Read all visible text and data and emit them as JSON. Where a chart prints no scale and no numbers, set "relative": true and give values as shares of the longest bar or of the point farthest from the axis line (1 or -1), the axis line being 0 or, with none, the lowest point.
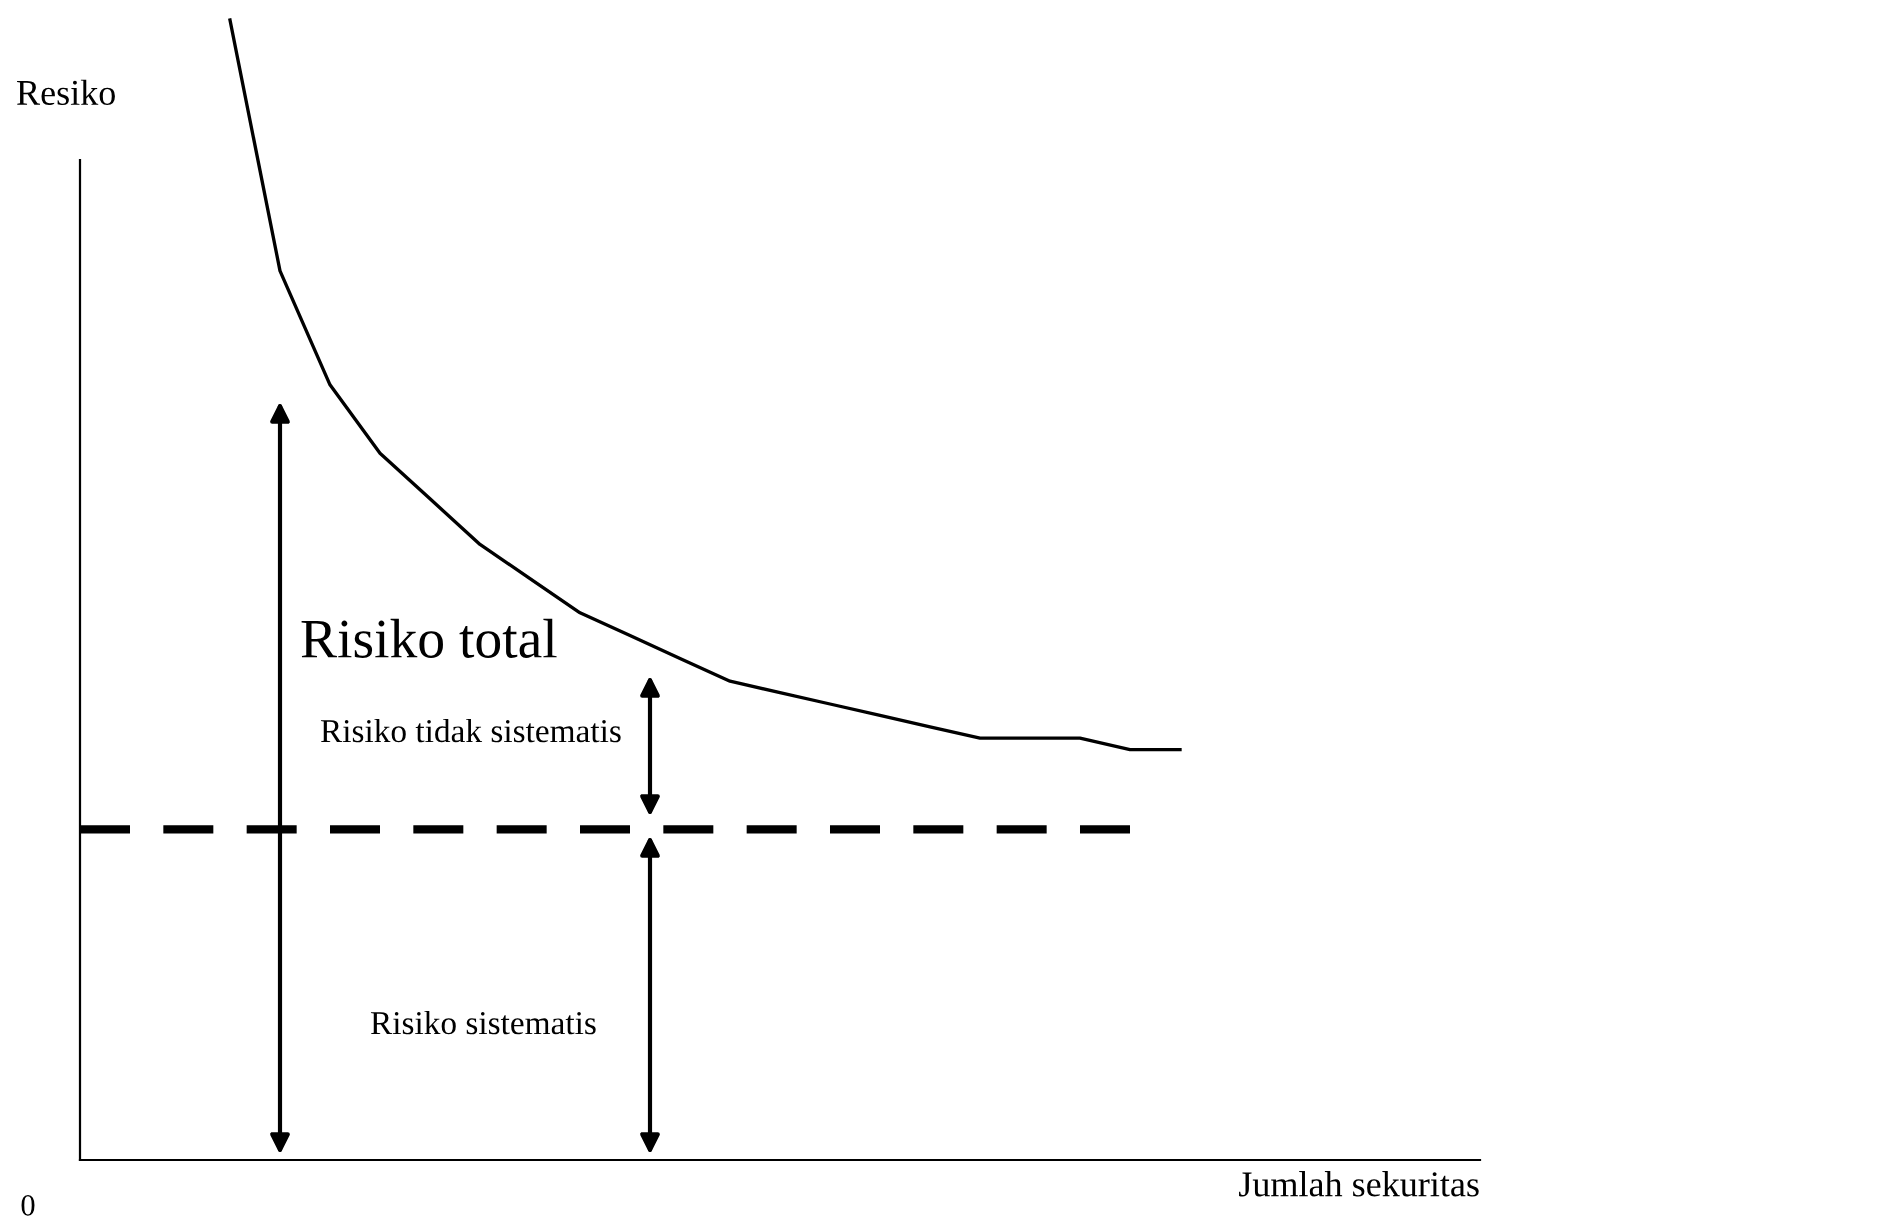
{
  "chart_data": {
    "type": "line",
    "relative": true,
    "xlabel": "Jumlah sekuritas",
    "ylabel": "Resiko",
    "categories": [
      null,
      null,
      null,
      null,
      null,
      null,
      null,
      null,
      null,
      null,
      null,
      null,
      null,
      null,
      null,
      null,
      null,
      null,
      null,
      null,
      null,
      null,
      null
    ],
    "series": [
      {
        "color": "#000000",
        "line_style": "solid",
        "values": [
          null,
          null,
          null,
          1.0,
          0.78,
          0.68,
          0.62,
          0.58,
          0.54,
          0.51,
          0.48,
          0.46,
          0.44,
          0.42,
          0.41,
          0.4,
          0.39,
          0.38,
          0.37,
          0.37,
          0.37,
          0.36,
          0.36
        ]
      },
      {
        "color": "#000000",
        "line_style": "dashed",
        "values": [
          0.29,
          0.29,
          0.29,
          0.29,
          0.29,
          0.29,
          0.29,
          0.29,
          0.29,
          0.29,
          0.29,
          0.29,
          0.29,
          0.29,
          0.29,
          0.29,
          0.29,
          0.29,
          0.29,
          0.29,
          0.29,
          0.29,
          null
        ]
      }
    ],
    "annotations": [
      "Risiko total",
      "Risiko tidak sistematis",
      "Risiko sistematis",
      "0"
    ],
    "legend": false,
    "marker": "none"
  }
}
